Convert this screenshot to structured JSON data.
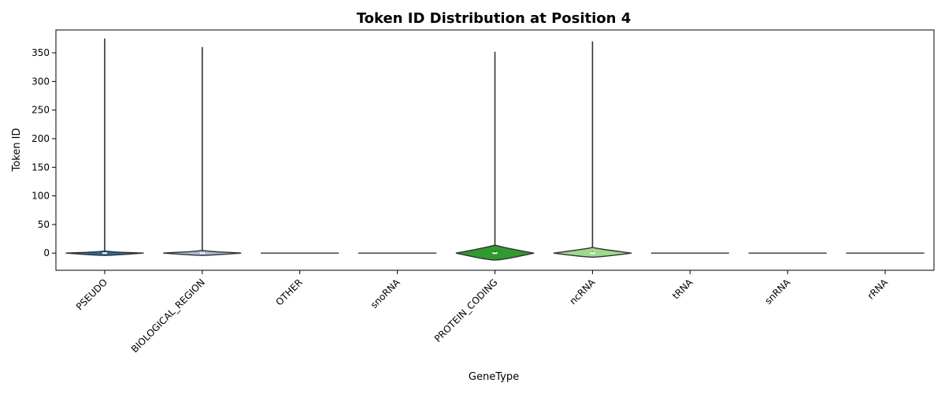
{
  "chart_data": {
    "type": "violin",
    "title": "Token ID Distribution at Position 4",
    "xlabel": "GeneType",
    "ylabel": "Token ID",
    "ylim": [
      -30,
      390
    ],
    "yticks": [
      0,
      50,
      100,
      150,
      200,
      250,
      300,
      350
    ],
    "grid": false,
    "categories": [
      "PSEUDO",
      "BIOLOGICAL_REGION",
      "OTHER",
      "snoRNA",
      "PROTEIN_CODING",
      "ncRNA",
      "tRNA",
      "snRNA",
      "rRNA"
    ],
    "series": [
      {
        "category": "PSEUDO",
        "color": "#2b6a99",
        "max": 375,
        "median": 0,
        "q1": 0,
        "q3": 2,
        "body_halfwidth_frac": 1.0,
        "body_top": 4,
        "body_bottom": -4
      },
      {
        "category": "BIOLOGICAL_REGION",
        "color": "#a7bad7",
        "max": 360,
        "median": 0,
        "q1": 0,
        "q3": 2,
        "body_halfwidth_frac": 1.0,
        "body_top": 5,
        "body_bottom": -4
      },
      {
        "category": "OTHER",
        "color": "#d9d9d9",
        "max": 0,
        "median": 0,
        "q1": 0,
        "q3": 0,
        "body_halfwidth_frac": 1.0,
        "body_top": 0,
        "body_bottom": 0
      },
      {
        "category": "snoRNA",
        "color": "#d9d9d9",
        "max": 0,
        "median": 0,
        "q1": 0,
        "q3": 0,
        "body_halfwidth_frac": 1.0,
        "body_top": 0,
        "body_bottom": 0
      },
      {
        "category": "PROTEIN_CODING",
        "color": "#2f9a2f",
        "max": 352,
        "median": 0,
        "q1": 0,
        "q3": 3,
        "body_halfwidth_frac": 1.0,
        "body_top": 14,
        "body_bottom": -12
      },
      {
        "category": "ncRNA",
        "color": "#9fd98e",
        "max": 370,
        "median": 0,
        "q1": 0,
        "q3": 2,
        "body_halfwidth_frac": 1.0,
        "body_top": 10,
        "body_bottom": -7
      },
      {
        "category": "tRNA",
        "color": "#d9d9d9",
        "max": 0,
        "median": 0,
        "q1": 0,
        "q3": 0,
        "body_halfwidth_frac": 1.0,
        "body_top": 0,
        "body_bottom": 0
      },
      {
        "category": "snRNA",
        "color": "#d9d9d9",
        "max": 0,
        "median": 0,
        "q1": 0,
        "q3": 0,
        "body_halfwidth_frac": 1.0,
        "body_top": 0,
        "body_bottom": 0
      },
      {
        "category": "rRNA",
        "color": "#d9d9d9",
        "max": 0,
        "median": 0,
        "q1": 0,
        "q3": 0,
        "body_halfwidth_frac": 1.0,
        "body_top": 0,
        "body_bottom": 0
      }
    ]
  }
}
